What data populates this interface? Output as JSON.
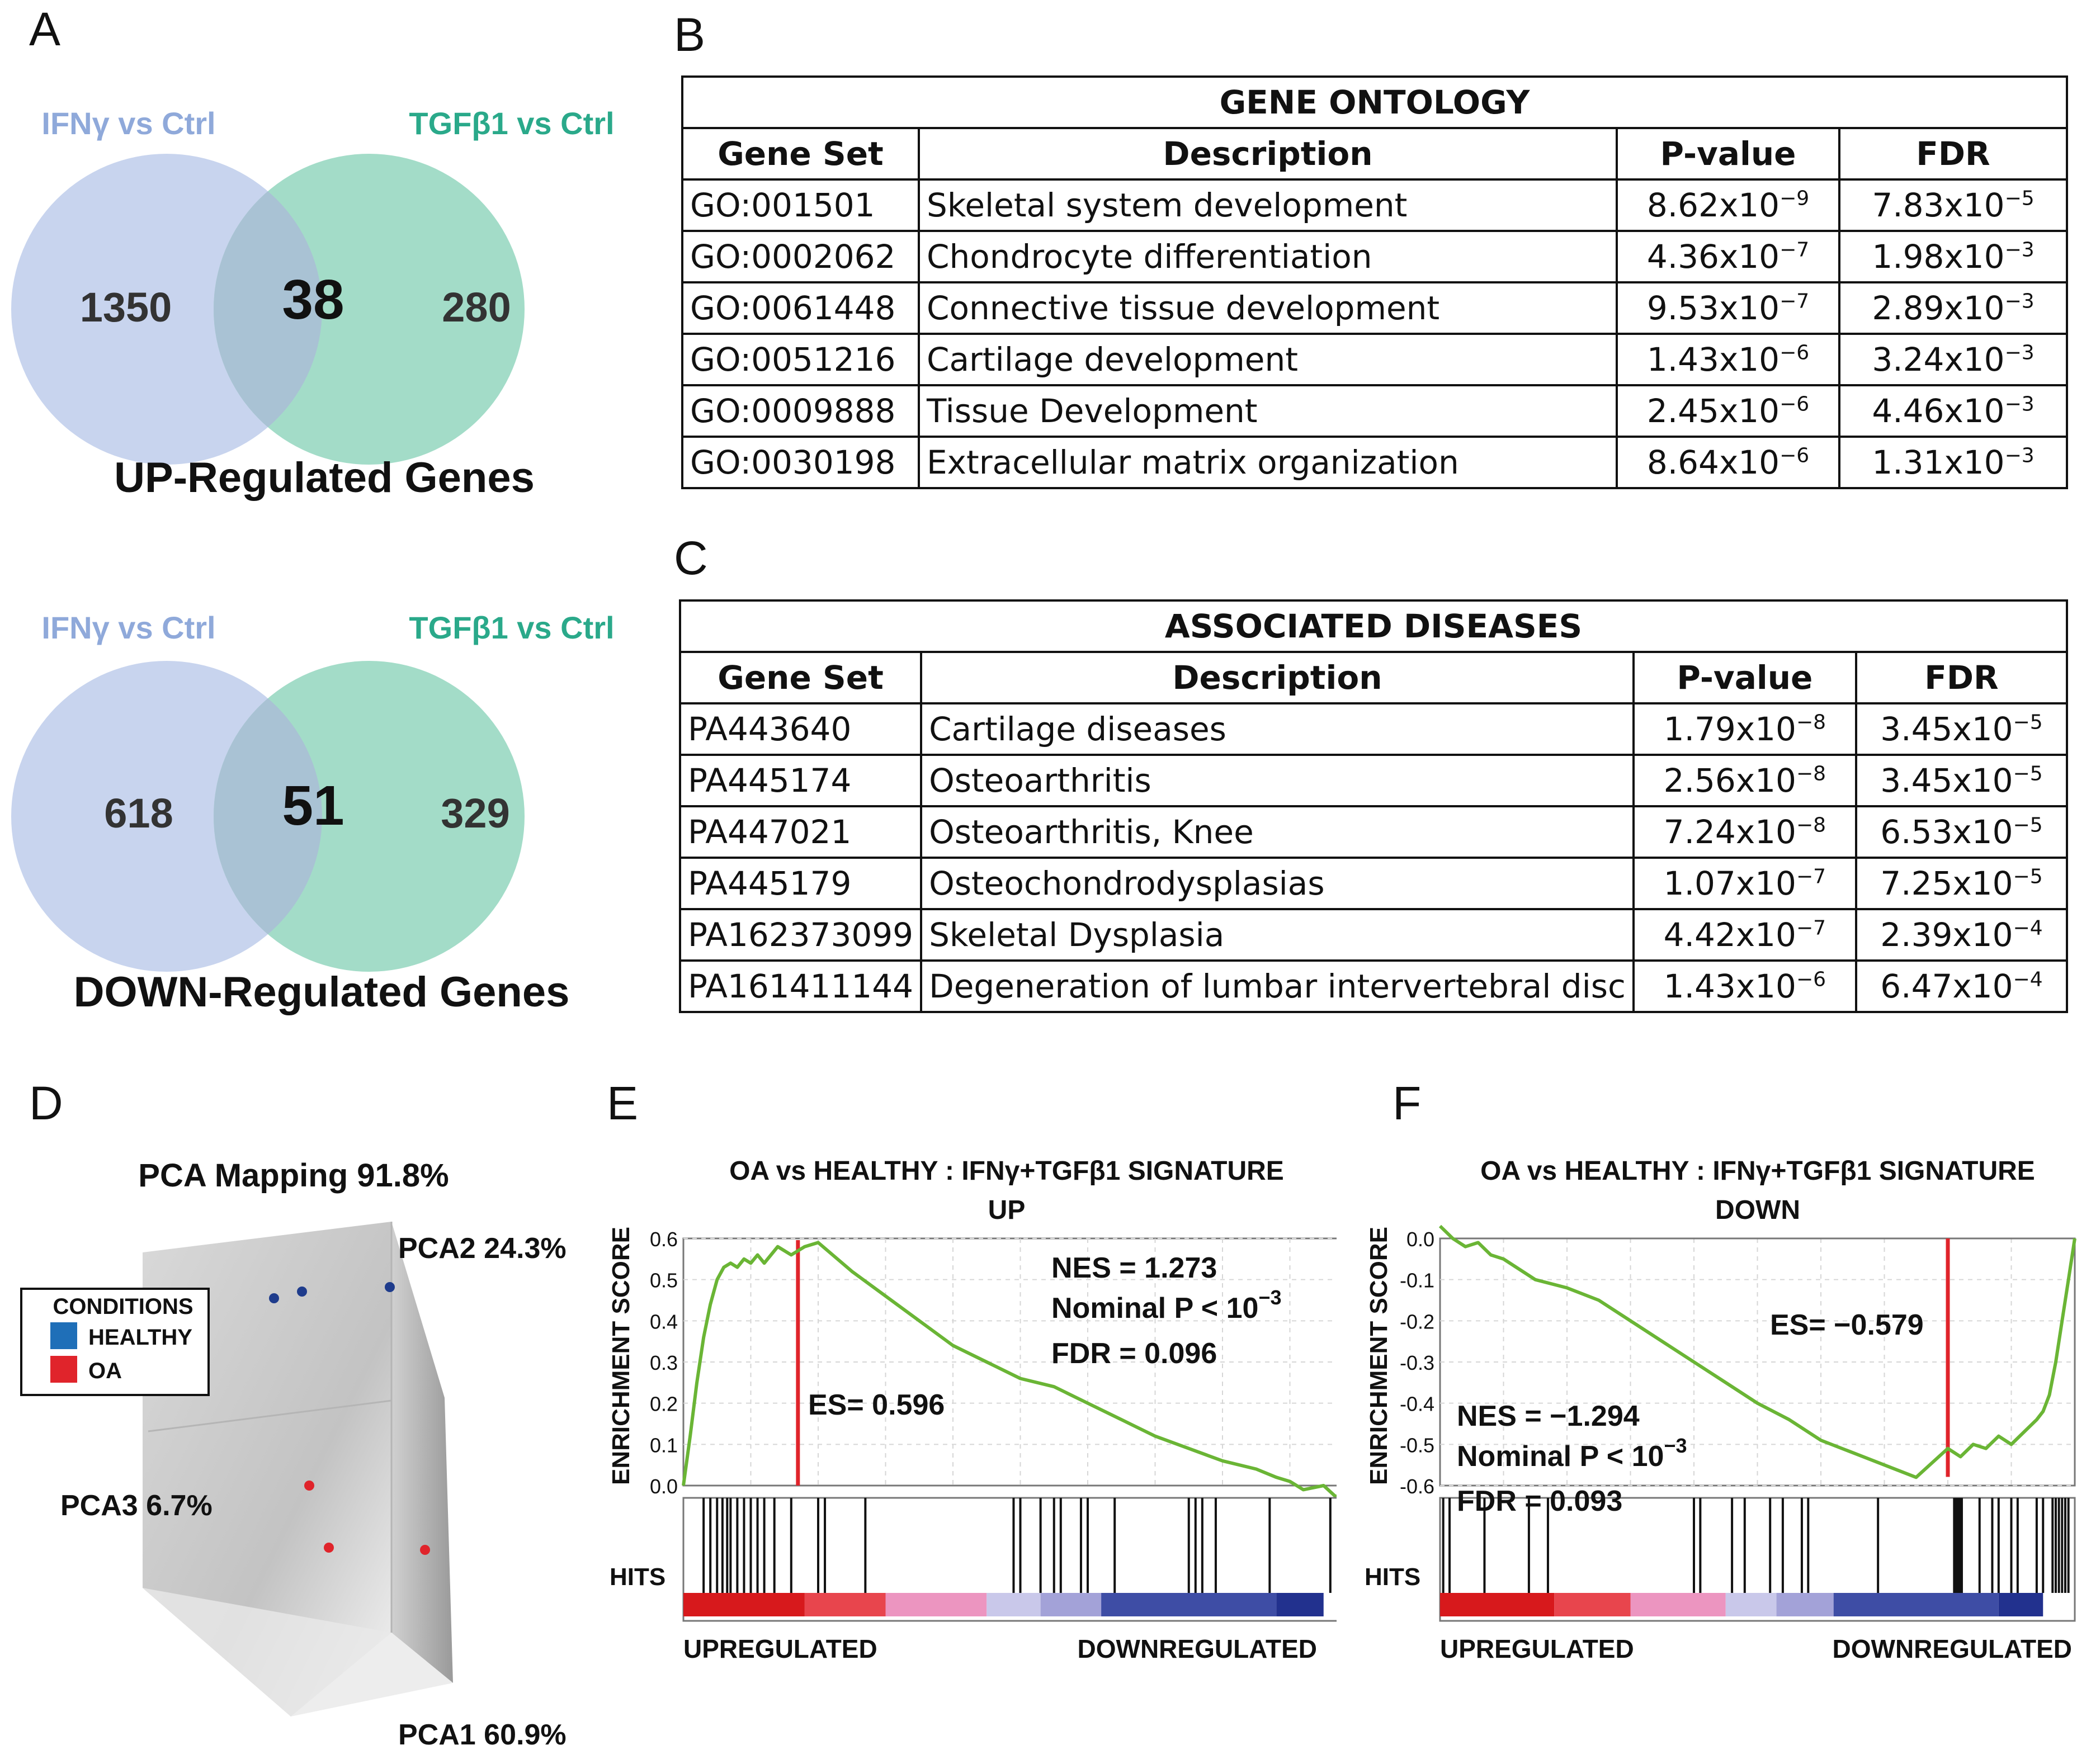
{
  "panels": {
    "a": "A",
    "b": "B",
    "c": "C",
    "d": "D",
    "e": "E",
    "f": "F"
  },
  "venn_up": {
    "left_label": "IFNγ vs Ctrl",
    "right_label": "TGFβ1 vs Ctrl",
    "left_only": "1350",
    "overlap": "38",
    "right_only": "280",
    "caption": "UP-Regulated Genes"
  },
  "venn_down": {
    "left_label": "IFNγ vs Ctrl",
    "right_label": "TGFβ1 vs Ctrl",
    "left_only": "618",
    "overlap": "51",
    "right_only": "329",
    "caption": "DOWN-Regulated Genes"
  },
  "gene_ontology": {
    "title": "GENE ONTOLOGY",
    "headers": [
      "Gene Set",
      "Description",
      "P-value",
      "FDR"
    ],
    "rows": [
      {
        "set": "GO:001501",
        "desc": "Skeletal system development",
        "p_base": "8.62x10",
        "p_exp": "−9",
        "fdr_base": "7.83x10",
        "fdr_exp": "−5"
      },
      {
        "set": "GO:0002062",
        "desc": "Chondrocyte differentiation",
        "p_base": "4.36x10",
        "p_exp": "−7",
        "fdr_base": "1.98x10",
        "fdr_exp": "−3"
      },
      {
        "set": "GO:0061448",
        "desc": "Connective tissue development",
        "p_base": "9.53x10",
        "p_exp": "−7",
        "fdr_base": "2.89x10",
        "fdr_exp": "−3"
      },
      {
        "set": "GO:0051216",
        "desc": "Cartilage development",
        "p_base": "1.43x10",
        "p_exp": "−6",
        "fdr_base": "3.24x10",
        "fdr_exp": "−3"
      },
      {
        "set": "GO:0009888",
        "desc": "Tissue Development",
        "p_base": "2.45x10",
        "p_exp": "−6",
        "fdr_base": "4.46x10",
        "fdr_exp": "−3"
      },
      {
        "set": "GO:0030198",
        "desc": "Extracellular matrix organization",
        "p_base": "8.64x10",
        "p_exp": "−6",
        "fdr_base": "1.31x10",
        "fdr_exp": "−3"
      }
    ]
  },
  "associated_diseases": {
    "title": "ASSOCIATED DISEASES",
    "headers": [
      "Gene Set",
      "Description",
      "P-value",
      "FDR"
    ],
    "rows": [
      {
        "set": "PA443640",
        "desc": "Cartilage diseases",
        "p_base": "1.79x10",
        "p_exp": "−8",
        "fdr_base": "3.45x10",
        "fdr_exp": "−5"
      },
      {
        "set": "PA445174",
        "desc": "Osteoarthritis",
        "p_base": "2.56x10",
        "p_exp": "−8",
        "fdr_base": "3.45x10",
        "fdr_exp": "−5"
      },
      {
        "set": "PA447021",
        "desc": "Osteoarthritis, Knee",
        "p_base": "7.24x10",
        "p_exp": "−8",
        "fdr_base": "6.53x10",
        "fdr_exp": "−5"
      },
      {
        "set": "PA445179",
        "desc": "Osteochondrodysplasias",
        "p_base": "1.07x10",
        "p_exp": "−7",
        "fdr_base": "7.25x10",
        "fdr_exp": "−5"
      },
      {
        "set": "PA162373099",
        "desc": "Skeletal Dysplasia",
        "p_base": "4.42x10",
        "p_exp": "−7",
        "fdr_base": "2.39x10",
        "fdr_exp": "−4"
      },
      {
        "set": "PA161411144",
        "desc": "Degeneration of lumbar intervertebral disc",
        "p_base": "1.43x10",
        "p_exp": "−6",
        "fdr_base": "6.47x10",
        "fdr_exp": "−4"
      }
    ]
  },
  "pca": {
    "title": "PCA Mapping 91.8%",
    "pca1": "PCA1 60.9%",
    "pca2": "PCA2 24.3%",
    "pca3": "PCA3 6.7%",
    "legend_title": "CONDITIONS",
    "legend": [
      {
        "label": "HEALTHY",
        "color": "#1f6fb8"
      },
      {
        "label": "OA",
        "color": "#e0242b"
      }
    ]
  },
  "colors": {
    "ifng": "#8fa9da",
    "tgfb1": "#2aa98a",
    "venn_left": "#c8d4ee",
    "venn_right": "#a3dcc8",
    "venn_mid": "#a9c2d4",
    "curve": "#6ab535",
    "es_line": "#e0242b"
  },
  "chart_data": [
    {
      "type": "line",
      "title": "OA vs HEALTHY : IFNγ+TGFβ1 SIGNATURE",
      "subtitle": "UP",
      "ylabel": "ENRICHMENT SCORE",
      "ylim": [
        0.0,
        0.6
      ],
      "yticks": [
        "0.6",
        "0.5",
        "0.4",
        "0.3",
        "0.2",
        "0.1",
        "0.0"
      ],
      "x": [
        0,
        1,
        2,
        3,
        4,
        5,
        6,
        7,
        8,
        9,
        10,
        11,
        12,
        14,
        16,
        18,
        20,
        25,
        30,
        35,
        40,
        45,
        50,
        55,
        60,
        65,
        70,
        75,
        80,
        85,
        88,
        90,
        92,
        95,
        97,
        98,
        100
      ],
      "values": [
        0.0,
        0.12,
        0.25,
        0.36,
        0.44,
        0.5,
        0.53,
        0.54,
        0.53,
        0.55,
        0.54,
        0.56,
        0.54,
        0.58,
        0.56,
        0.58,
        0.59,
        0.52,
        0.46,
        0.4,
        0.34,
        0.3,
        0.26,
        0.24,
        0.2,
        0.16,
        0.12,
        0.09,
        0.06,
        0.04,
        0.02,
        0.01,
        -0.01,
        0.0,
        -0.03,
        0.02,
        0.0
      ],
      "es_x": 17,
      "es_value": 0.596,
      "hits": [
        3,
        4,
        5,
        5.8,
        6.5,
        7,
        8,
        9,
        10,
        11,
        12,
        13.5,
        16,
        20,
        21,
        27,
        49,
        50,
        53,
        55,
        56,
        59,
        60,
        64,
        75,
        76,
        77,
        79,
        87,
        96
      ],
      "stats": {
        "nes": "NES = 1.273",
        "nominal_p_base": "Nominal P < 10",
        "nominal_p_exp": "−3",
        "fdr": "FDR = 0.096",
        "es": "ES= 0.596"
      },
      "hits_label": "HITS",
      "x_left_label": "UPREGULATED",
      "x_right_label": "DOWNREGULATED"
    },
    {
      "type": "line",
      "title": "OA vs HEALTHY : IFNγ+TGFβ1 SIGNATURE",
      "subtitle": "DOWN",
      "ylabel": "ENRICHMENT SCORE",
      "ylim": [
        -0.6,
        0.0
      ],
      "yticks": [
        "0.0",
        "-0.1",
        "-0.2",
        "-0.3",
        "-0.4",
        "-0.5",
        "-0.6"
      ],
      "x": [
        0,
        2,
        4,
        6,
        8,
        10,
        15,
        20,
        25,
        30,
        35,
        40,
        45,
        50,
        55,
        60,
        65,
        70,
        75,
        80,
        82,
        84,
        86,
        88,
        90,
        92,
        94,
        95,
        96,
        97,
        98,
        99,
        100
      ],
      "values": [
        0.03,
        0.0,
        -0.02,
        -0.01,
        -0.04,
        -0.05,
        -0.1,
        -0.12,
        -0.15,
        -0.2,
        -0.25,
        -0.3,
        -0.35,
        -0.4,
        -0.44,
        -0.49,
        -0.52,
        -0.55,
        -0.58,
        -0.51,
        -0.53,
        -0.5,
        -0.51,
        -0.48,
        -0.5,
        -0.47,
        -0.44,
        -0.42,
        -0.38,
        -0.3,
        -0.2,
        -0.1,
        0.0
      ],
      "es_x": 80,
      "es_value": -0.579,
      "hits": [
        0.5,
        1.5,
        7,
        14,
        17,
        40,
        41,
        46,
        48,
        52,
        54,
        57,
        58,
        69,
        81,
        81.3,
        81.6,
        81.9,
        82.2,
        85,
        87,
        88,
        90,
        91,
        94,
        95,
        96.5,
        97,
        97.5,
        98,
        98.5,
        99
      ],
      "stats": {
        "nes": "NES = −1.294",
        "nominal_p_base": "Nominal P < 10",
        "nominal_p_exp": "−3",
        "fdr": "FDR = 0.093",
        "es": "ES= −0.579"
      },
      "hits_label": "HITS",
      "x_left_label": "UPREGULATED",
      "x_right_label": "DOWNREGULATED"
    }
  ]
}
